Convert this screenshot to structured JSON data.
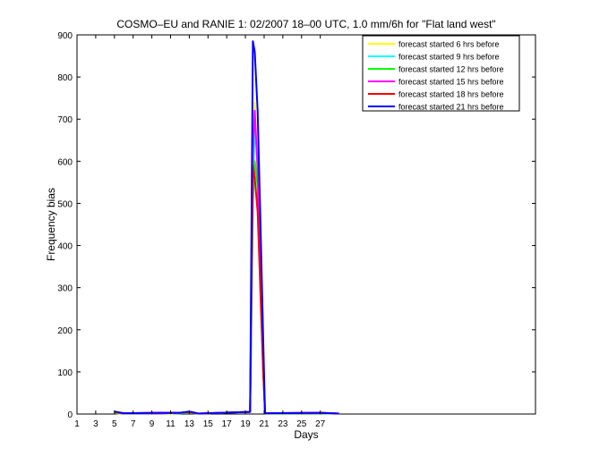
{
  "chart_data": {
    "type": "line",
    "title": "COSMO–EU and RANIE 1: 02/2007 18–00 UTC, 1.0 mm/6h for \"Flat land west\"",
    "xlabel": "Days",
    "ylabel": "Frequency bias",
    "xlim": [
      1,
      50
    ],
    "ylim": [
      0,
      900
    ],
    "x_ticks": [
      1,
      3,
      5,
      7,
      9,
      11,
      13,
      15,
      17,
      19,
      21,
      23,
      25,
      27
    ],
    "y_ticks": [
      0,
      100,
      200,
      300,
      400,
      500,
      600,
      700,
      800,
      900
    ],
    "grid": false,
    "legend_position": "top-right",
    "colors": {
      "forecast started 6 hrs before": "#ffff00",
      "forecast started 9 hrs before": "#00ffff",
      "forecast started 12 hrs before": "#00ff00",
      "forecast started 15 hrs before": "#ff00ff",
      "forecast started 18 hrs before": "#ff0000",
      "forecast started 21 hrs before": "#0000ff"
    },
    "series": [
      {
        "name": "forecast started 6 hrs before",
        "values": [
          [
            5,
            3
          ],
          [
            5.5,
            1
          ],
          [
            6,
            2
          ],
          [
            10,
            2
          ],
          [
            11,
            1
          ],
          [
            12,
            2
          ],
          [
            13,
            3
          ],
          [
            14,
            1
          ],
          [
            19.5,
            5
          ],
          [
            19.8,
            490
          ],
          [
            20,
            740
          ],
          [
            20.3,
            560
          ],
          [
            20.6,
            320
          ],
          [
            20.9,
            120
          ],
          [
            21.1,
            2
          ],
          [
            27,
            2
          ],
          [
            29,
            1
          ]
        ]
      },
      {
        "name": "forecast started 9 hrs before",
        "values": [
          [
            5,
            4
          ],
          [
            6,
            2
          ],
          [
            10,
            2
          ],
          [
            12,
            2
          ],
          [
            13,
            4
          ],
          [
            14,
            1
          ],
          [
            19.5,
            5
          ],
          [
            19.8,
            510
          ],
          [
            20,
            680
          ],
          [
            20.3,
            600
          ],
          [
            20.6,
            300
          ],
          [
            20.9,
            100
          ],
          [
            21.1,
            2
          ],
          [
            27,
            2
          ],
          [
            29,
            1
          ]
        ]
      },
      {
        "name": "forecast started 12 hrs before",
        "values": [
          [
            5,
            3
          ],
          [
            6,
            2
          ],
          [
            10,
            3
          ],
          [
            12,
            2
          ],
          [
            13,
            3
          ],
          [
            14,
            1
          ],
          [
            19.5,
            5
          ],
          [
            19.8,
            500
          ],
          [
            20,
            600
          ],
          [
            20.3,
            540
          ],
          [
            20.6,
            300
          ],
          [
            20.9,
            110
          ],
          [
            21.1,
            2
          ],
          [
            27,
            2
          ],
          [
            29,
            1
          ]
        ]
      },
      {
        "name": "forecast started 15 hrs before",
        "values": [
          [
            5,
            5
          ],
          [
            6,
            2
          ],
          [
            10,
            2
          ],
          [
            12,
            3
          ],
          [
            13,
            5
          ],
          [
            14,
            1
          ],
          [
            19.5,
            5
          ],
          [
            19.8,
            620
          ],
          [
            20,
            720
          ],
          [
            20.3,
            580
          ],
          [
            20.6,
            320
          ],
          [
            20.9,
            110
          ],
          [
            21.1,
            2
          ],
          [
            27,
            3
          ],
          [
            29,
            1
          ]
        ]
      },
      {
        "name": "forecast started 18 hrs before",
        "values": [
          [
            5,
            4
          ],
          [
            6,
            2
          ],
          [
            10,
            3
          ],
          [
            12,
            3
          ],
          [
            13,
            4
          ],
          [
            14,
            1
          ],
          [
            19.5,
            5
          ],
          [
            19.8,
            590
          ],
          [
            20,
            560
          ],
          [
            20.3,
            480
          ],
          [
            20.6,
            290
          ],
          [
            20.9,
            100
          ],
          [
            21.1,
            2
          ],
          [
            27,
            3
          ],
          [
            29,
            1
          ]
        ]
      },
      {
        "name": "forecast started 21 hrs before",
        "values": [
          [
            5,
            6
          ],
          [
            6,
            2
          ],
          [
            10,
            3
          ],
          [
            12,
            3
          ],
          [
            13,
            6
          ],
          [
            14,
            1
          ],
          [
            19.5,
            5
          ],
          [
            19.8,
            885
          ],
          [
            20,
            860
          ],
          [
            20.3,
            720
          ],
          [
            20.6,
            460
          ],
          [
            20.9,
            180
          ],
          [
            21.1,
            2
          ],
          [
            27,
            3
          ],
          [
            29,
            1
          ]
        ]
      }
    ]
  }
}
